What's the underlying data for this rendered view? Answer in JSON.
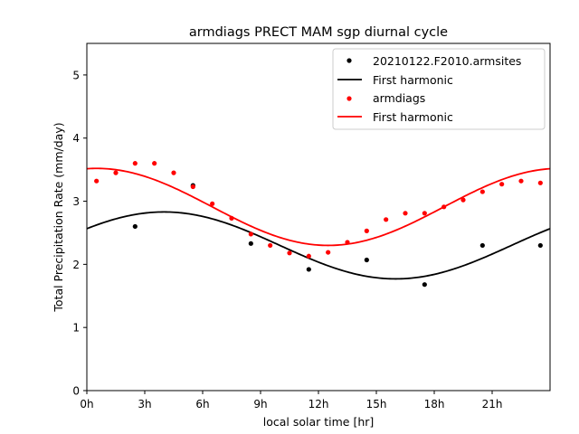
{
  "chart_data": {
    "type": "scatter",
    "title": "armdiags PRECT MAM sgp diurnal cycle",
    "xlabel": "local solar time [hr]",
    "ylabel": "Total Precipitation Rate (mm/day)",
    "xlim": [
      0,
      24
    ],
    "ylim": [
      0,
      5.5
    ],
    "xticks": [
      0,
      3,
      6,
      9,
      12,
      15,
      18,
      21
    ],
    "xtick_labels": [
      "0h",
      "3h",
      "6h",
      "9h",
      "12h",
      "15h",
      "18h",
      "21h"
    ],
    "yticks": [
      0,
      1,
      2,
      3,
      4,
      5
    ],
    "ytick_labels": [
      "0",
      "1",
      "2",
      "3",
      "4",
      "5"
    ],
    "legend_position": "top-right",
    "series": [
      {
        "name": "20210122.F2010.armsites",
        "kind": "points",
        "color": "#000000",
        "x": [
          2.5,
          5.5,
          8.5,
          11.5,
          14.5,
          17.5,
          20.5,
          23.5
        ],
        "y": [
          2.6,
          3.25,
          2.33,
          1.92,
          2.07,
          1.68,
          2.3,
          2.3
        ]
      },
      {
        "name": "First harmonic",
        "kind": "curve",
        "color": "#000000",
        "mean": 2.3,
        "amplitude": 0.53,
        "peak_hour": 4.0
      },
      {
        "name": "armdiags",
        "kind": "points",
        "color": "#ff0000",
        "x": [
          0.5,
          1.5,
          2.5,
          3.5,
          4.5,
          5.5,
          6.5,
          7.5,
          8.5,
          9.5,
          10.5,
          11.5,
          12.5,
          13.5,
          14.5,
          15.5,
          16.5,
          17.5,
          18.5,
          19.5,
          20.5,
          21.5,
          22.5,
          23.5
        ],
        "y": [
          3.32,
          3.45,
          3.6,
          3.6,
          3.45,
          3.23,
          2.96,
          2.73,
          2.48,
          2.3,
          2.18,
          2.13,
          2.19,
          2.35,
          2.53,
          2.71,
          2.81,
          2.81,
          2.91,
          3.02,
          3.15,
          3.27,
          3.32,
          3.29
        ]
      },
      {
        "name": "First harmonic",
        "kind": "curve",
        "color": "#ff0000",
        "mean": 2.91,
        "amplitude": 0.61,
        "peak_hour": 0.5
      }
    ]
  }
}
